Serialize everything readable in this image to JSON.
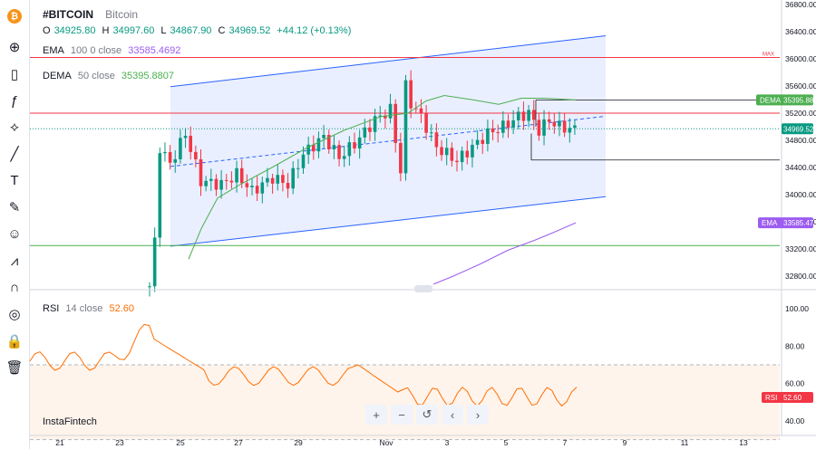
{
  "symbol": {
    "ticker": "#BITCOIN",
    "name": "Bitcoin"
  },
  "ohlc": {
    "o_label": "O",
    "o": "34925.80",
    "h_label": "H",
    "h": "34997.60",
    "l_label": "L",
    "l": "34867.90",
    "c_label": "C",
    "c": "34969.52",
    "change": "+44.12 (+0.13%)"
  },
  "ema_legend": {
    "name": "EMA",
    "params": "100 0 close",
    "value": "33585.4692"
  },
  "dema_legend": {
    "name": "DEMA",
    "params": "50 close",
    "value": "35395.8807"
  },
  "rsi_legend": {
    "name": "RSI",
    "params": "14 close",
    "value": "52.60"
  },
  "watermark": "InstaFintech",
  "max_marker": "MAX",
  "badges": {
    "dema": {
      "label": "DEMA",
      "value": "35395.88"
    },
    "price": {
      "value": "34969.52"
    },
    "ema": {
      "label": "EMA",
      "value": "33585.47"
    },
    "rsi": {
      "label": "RSI",
      "value": "52.60"
    }
  },
  "colors": {
    "up": "#089981",
    "down": "#f23645",
    "dema": "#4caf50",
    "ema": "#9c5cf0",
    "rsi": "#ff6d00",
    "channel": "#2962ff",
    "badge_dema": "#4caf50",
    "badge_price": "#089981",
    "badge_ema": "#9c5cf0",
    "badge_rsi": "#f23645"
  },
  "toolbar_icons": [
    "crosshair-icon",
    "candles-icon",
    "function-icon",
    "pattern-icon",
    "trend-line-icon",
    "text-icon",
    "brush-icon",
    "emoji-icon",
    "measure-icon",
    "magnet-icon",
    "eye-off-icon",
    "lock-icon",
    "trash-icon"
  ],
  "nav_buttons": [
    {
      "name": "zoom-in-button",
      "glyph": "+"
    },
    {
      "name": "zoom-out-button",
      "glyph": "−"
    },
    {
      "name": "reset-button",
      "glyph": "↺"
    },
    {
      "name": "scroll-left-button",
      "glyph": "‹"
    },
    {
      "name": "scroll-right-button",
      "glyph": "›"
    }
  ],
  "chart_data": {
    "type": "candlestick",
    "price_axis": {
      "ticks": [
        "36800.00",
        "36400.00",
        "36000.00",
        "35600.00",
        "35200.00",
        "34800.00",
        "34400.00",
        "34000.00",
        "33600.00",
        "33200.00",
        "32800.00"
      ],
      "ylim": [
        32600,
        36800
      ]
    },
    "rsi_axis": {
      "ticks": [
        "100.00",
        "80.00",
        "60.00",
        "40.00"
      ],
      "ylim": [
        30,
        100
      ],
      "bands": [
        70,
        30
      ]
    },
    "date_axis": {
      "ticks": [
        "21",
        "23",
        "25",
        "27",
        "29",
        "Nov",
        "3",
        "5",
        "7",
        "9",
        "11",
        "13"
      ]
    },
    "horizontal_levels": [
      36020,
      35200,
      33250
    ],
    "channel": {
      "upper": [
        [
          0,
          35590
        ],
        [
          1,
          36340
        ]
      ],
      "lower": [
        [
          0,
          33240
        ],
        [
          1,
          33970
        ]
      ]
    },
    "candles": [],
    "rsi_values": []
  }
}
